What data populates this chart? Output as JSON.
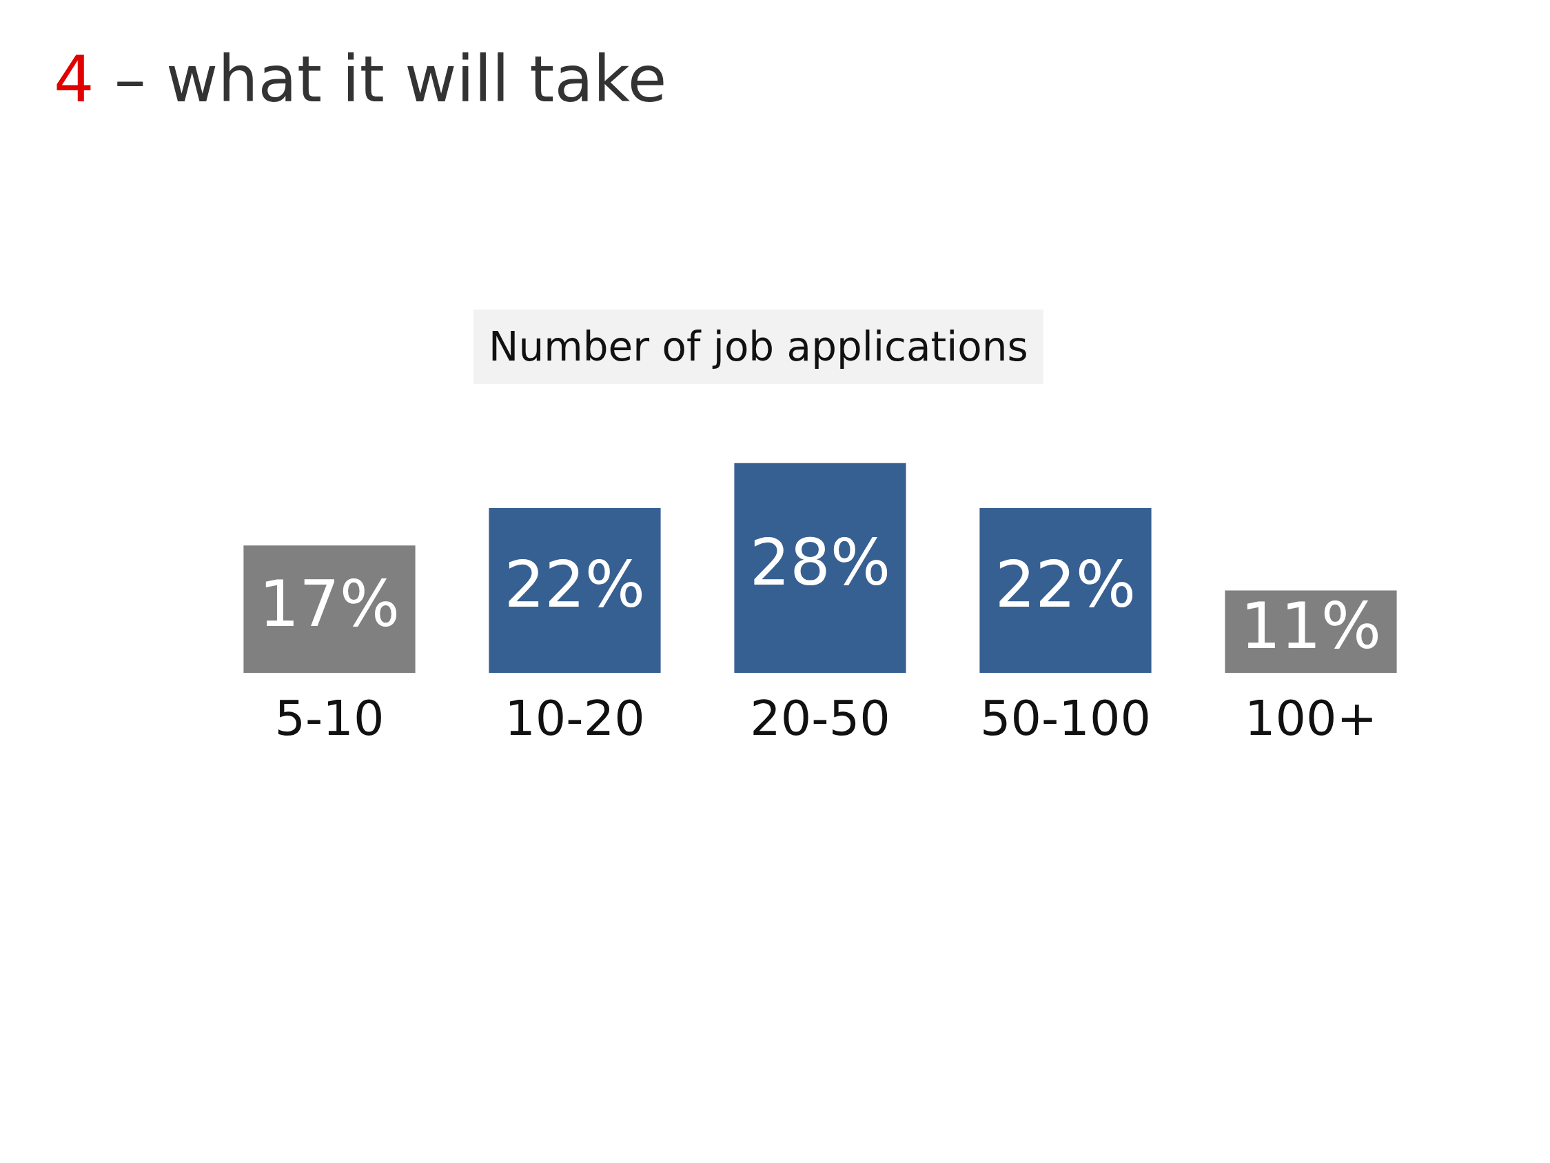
{
  "chart_data": {
    "type": "bar",
    "title": "4 – what it will take",
    "subtitle": "Number of job applications",
    "categories": [
      "5-10",
      "10-20",
      "20-50",
      "50-100",
      "100+"
    ],
    "values": [
      17,
      22,
      28,
      22,
      11
    ],
    "value_labels": [
      "17%",
      "22%",
      "28%",
      "22%",
      "11%"
    ],
    "colors": [
      "#808080",
      "#376092",
      "#376092",
      "#376092",
      "#808080"
    ],
    "grid": false,
    "legend": false
  }
}
